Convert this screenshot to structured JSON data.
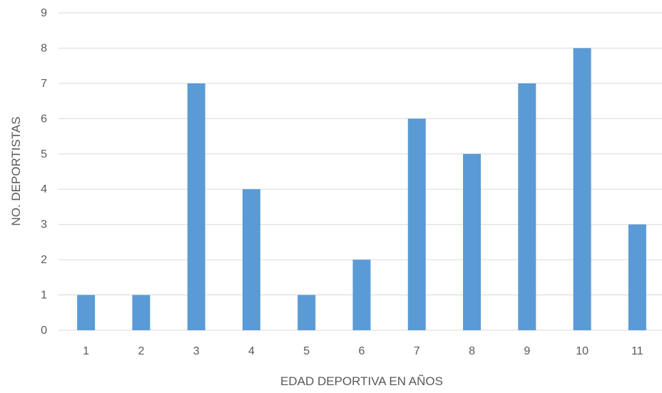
{
  "chart_data": {
    "type": "bar",
    "title": "",
    "categories": [
      "1",
      "2",
      "3",
      "4",
      "5",
      "6",
      "7",
      "8",
      "9",
      "10",
      "11"
    ],
    "values": [
      1,
      1,
      7,
      4,
      1,
      2,
      6,
      5,
      7,
      8,
      3
    ],
    "xlabel": "EDAD DEPORTIVA EN AÑOS",
    "ylabel": "NO. DEPORTISTAS",
    "ylim": [
      0,
      9
    ],
    "yticks": [
      "0",
      "1",
      "2",
      "3",
      "4",
      "5",
      "6",
      "7",
      "8",
      "9"
    ],
    "grid": "horizontal",
    "legend": "none",
    "bar_color": "#5b9bd5",
    "grid_color": "#d9d9d9"
  }
}
